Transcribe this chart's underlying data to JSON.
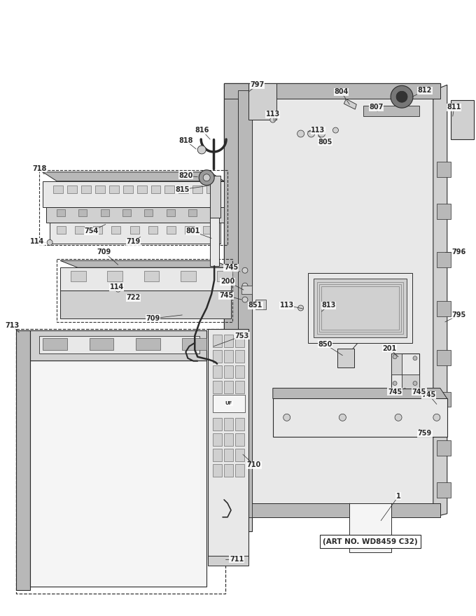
{
  "art_no": "(ART NO. WD8459 C32)",
  "bg_color": "#ffffff",
  "fig_width": 6.8,
  "fig_height": 8.8,
  "lc": "#2a2a2a",
  "fc_light": "#e8e8e8",
  "fc_mid": "#d0d0d0",
  "fc_dark": "#b8b8b8",
  "fc_white": "#f5f5f5"
}
